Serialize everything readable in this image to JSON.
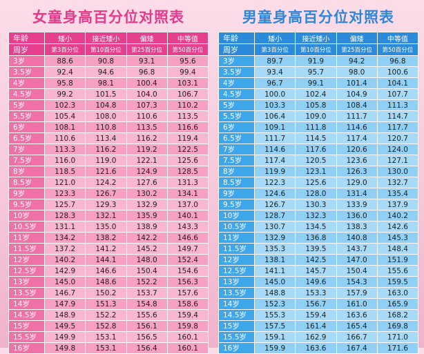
{
  "girls": {
    "title": "女童身高百分位对照表",
    "header1": [
      "年龄",
      "矮小",
      "接近矮小",
      "偏矮",
      "中等值"
    ],
    "header2": [
      "周岁",
      "第3百分位",
      "第10百分位",
      "第25百分位",
      "第50百分位"
    ],
    "rows": [
      [
        "3岁",
        "88.6",
        "90.8",
        "93.1",
        "95.6"
      ],
      [
        "3.5岁",
        "92.4",
        "94.6",
        "96.8",
        "99.4"
      ],
      [
        "4岁",
        "95.8",
        "98.1",
        "100.4",
        "103.1"
      ],
      [
        "4.5岁",
        "99.2",
        "101.5",
        "104.0",
        "106.7"
      ],
      [
        "5岁",
        "102.3",
        "104.8",
        "107.3",
        "110.2"
      ],
      [
        "5.5岁",
        "105.4",
        "108.0",
        "110.6",
        "113.5"
      ],
      [
        "6岁",
        "108.1",
        "110.8",
        "113.5",
        "116.6"
      ],
      [
        "6.5岁",
        "110.6",
        "113.4",
        "116.2",
        "119.4"
      ],
      [
        "7岁",
        "113.3",
        "116.2",
        "119.2",
        "122.5"
      ],
      [
        "7.5岁",
        "116.0",
        "119.0",
        "122.1",
        "125.6"
      ],
      [
        "8岁",
        "118.5",
        "121.6",
        "124.9",
        "128.5"
      ],
      [
        "8.5岁",
        "121.0",
        "124.2",
        "127.6",
        "131.3"
      ],
      [
        "9岁",
        "123.3",
        "126.7",
        "130.2",
        "134.1"
      ],
      [
        "9.5岁",
        "125.7",
        "129.3",
        "132.9",
        "137.0"
      ],
      [
        "10岁",
        "128.3",
        "132.1",
        "135.9",
        "140.1"
      ],
      [
        "10.5岁",
        "131.1",
        "135.0",
        "138.9",
        "143.3"
      ],
      [
        "11岁",
        "134.2",
        "138.2",
        "142.2",
        "146.6"
      ],
      [
        "11.5岁",
        "137.2",
        "141.2",
        "145.2",
        "149.7"
      ],
      [
        "12岁",
        "140.2",
        "144.1",
        "148.0",
        "152.4"
      ],
      [
        "12.5岁",
        "142.9",
        "146.6",
        "150.4",
        "154.6"
      ],
      [
        "13岁",
        "145.0",
        "148.6",
        "152.2",
        "156.3"
      ],
      [
        "13.5岁",
        "146.7",
        "150.2",
        "153.7",
        "157.6"
      ],
      [
        "14岁",
        "147.9",
        "151.3",
        "154.8",
        "158.6"
      ],
      [
        "14.5岁",
        "148.9",
        "152.2",
        "155.6",
        "159.4"
      ],
      [
        "15岁",
        "149.5",
        "152.8",
        "156.1",
        "159.8"
      ],
      [
        "15.5岁",
        "149.9",
        "153.1",
        "156.5",
        "160.1"
      ],
      [
        "16岁",
        "149.8",
        "153.1",
        "156.4",
        "160.1"
      ]
    ]
  },
  "boys": {
    "title": "男童身高百分位对照表",
    "header1": [
      "年龄",
      "矮小",
      "接近矮小",
      "偏矮",
      "中等值"
    ],
    "header2": [
      "周岁",
      "第3百分位",
      "第10百分位",
      "第25百分位",
      "第50百分位"
    ],
    "rows": [
      [
        "3岁",
        "89.7",
        "91.9",
        "94.2",
        "96.8"
      ],
      [
        "3.5岁",
        "93.4",
        "95.7",
        "98.0",
        "100.6"
      ],
      [
        "4岁",
        "96.7",
        "99.1",
        "101.4",
        "104.1"
      ],
      [
        "4.5岁",
        "100.0",
        "102.4",
        "104.9",
        "107.7"
      ],
      [
        "5岁",
        "103.3",
        "105.8",
        "108.4",
        "111.3"
      ],
      [
        "5.5岁",
        "106.4",
        "109.0",
        "111.7",
        "114.7"
      ],
      [
        "6岁",
        "109.1",
        "111.8",
        "114.6",
        "117.7"
      ],
      [
        "6.5岁",
        "111.7",
        "114.5",
        "117.4",
        "120.7"
      ],
      [
        "7岁",
        "114.6",
        "117.6",
        "120.6",
        "124.0"
      ],
      [
        "7.5岁",
        "117.4",
        "120.5",
        "123.6",
        "127.1"
      ],
      [
        "8岁",
        "119.9",
        "123.1",
        "126.3",
        "130.0"
      ],
      [
        "8.5岁",
        "122.3",
        "125.6",
        "129.0",
        "132.7"
      ],
      [
        "9岁",
        "124.6",
        "128.0",
        "131.4",
        "135.4"
      ],
      [
        "9.5岁",
        "126.7",
        "130.3",
        "133.9",
        "137.9"
      ],
      [
        "10岁",
        "128.7",
        "132.3",
        "136.0",
        "140.2"
      ],
      [
        "10.5岁",
        "130.7",
        "134.5",
        "138.3",
        "142.6"
      ],
      [
        "11岁",
        "132.9",
        "136.8",
        "140.8",
        "145.3"
      ],
      [
        "11.5岁",
        "135.3",
        "139.5",
        "143.7",
        "148.4"
      ],
      [
        "12岁",
        "138.1",
        "142.5",
        "147.0",
        "151.9"
      ],
      [
        "12.5岁",
        "141.1",
        "145.7",
        "150.4",
        "155.6"
      ],
      [
        "13岁",
        "145.0",
        "149.6",
        "154.3",
        "159.5"
      ],
      [
        "13.5岁",
        "148.8",
        "153.3",
        "157.9",
        "163.0"
      ],
      [
        "14岁",
        "152.3",
        "156.7",
        "161.0",
        "165.9"
      ],
      [
        "14.5岁",
        "155.3",
        "159.4",
        "163.6",
        "168.2"
      ],
      [
        "15岁",
        "157.5",
        "161.4",
        "165.4",
        "169.8"
      ],
      [
        "15.5岁",
        "159.1",
        "162.9",
        "166.7",
        "171.0"
      ],
      [
        "16岁",
        "159.9",
        "163.6",
        "167.4",
        "171.6"
      ]
    ]
  }
}
